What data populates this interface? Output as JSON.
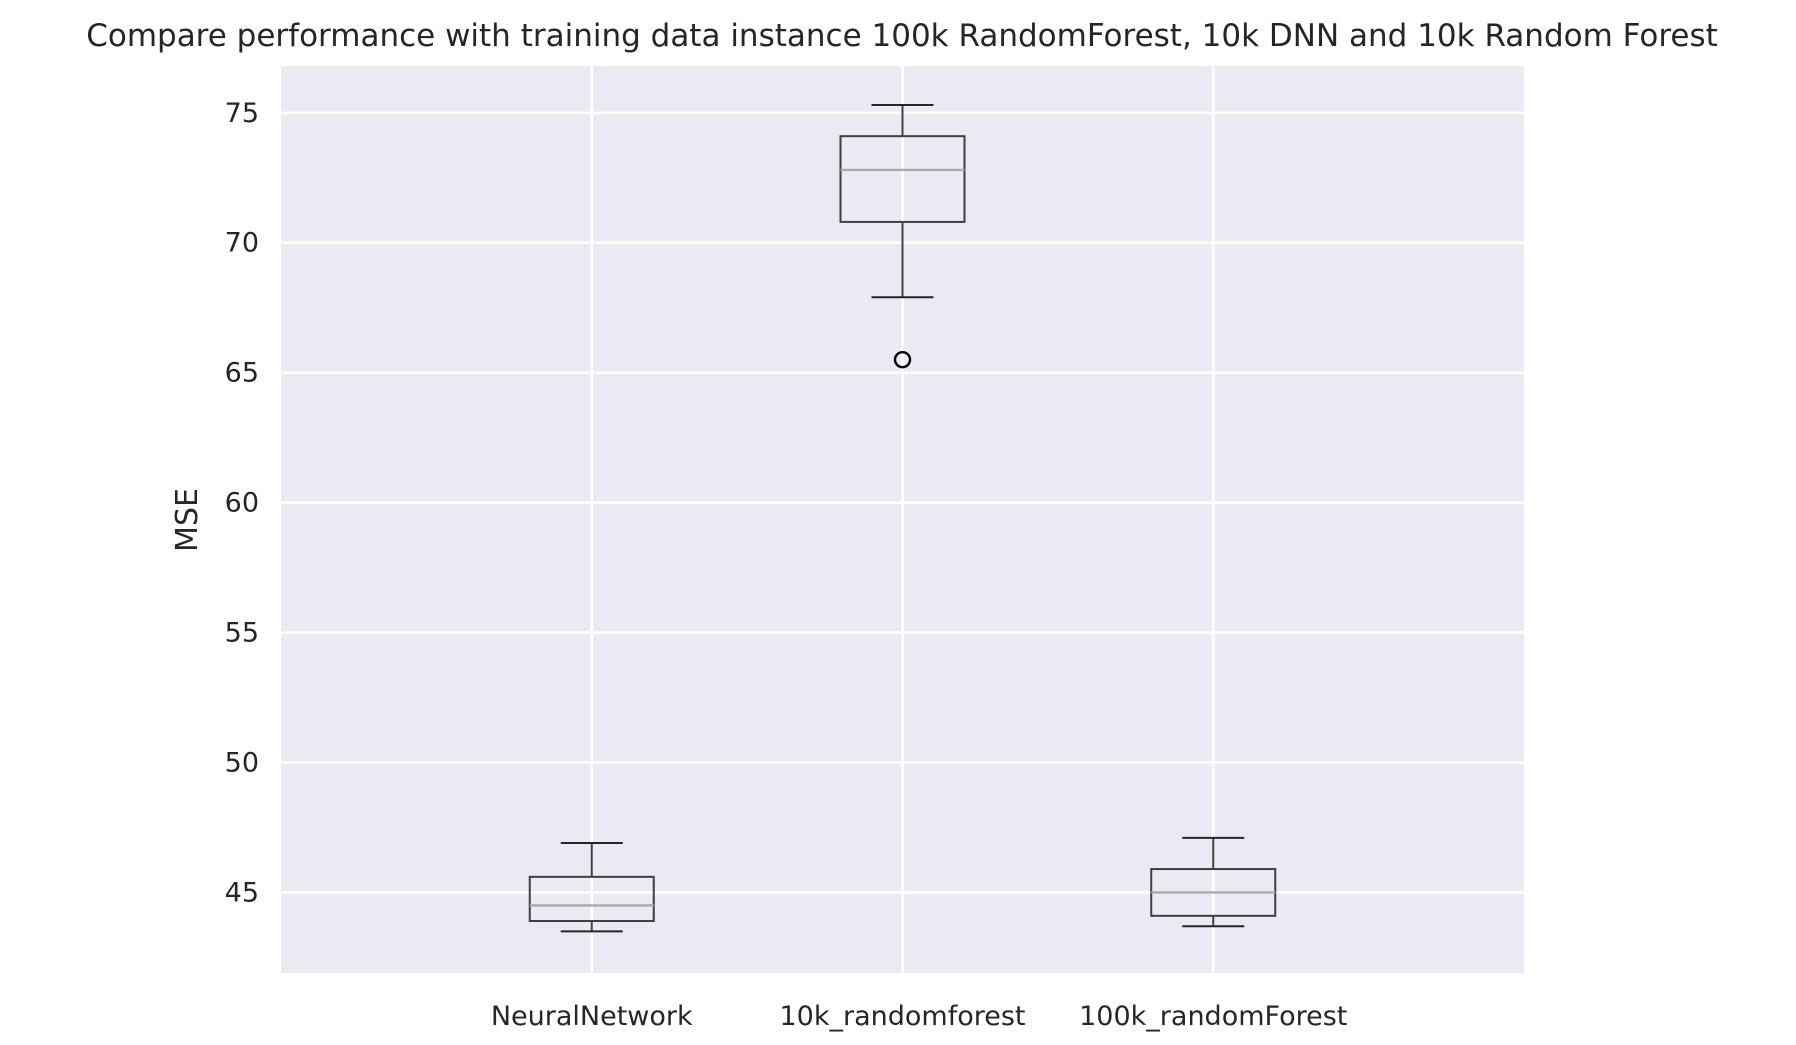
{
  "chart_data": {
    "type": "box",
    "title": "Compare performance with training data instance 100k RandomForest, 10k DNN and 10k Random Forest",
    "xlabel": "",
    "ylabel": "MSE",
    "ylim": [
      41.9,
      76.8
    ],
    "yticks": [
      45,
      50,
      55,
      60,
      65,
      70,
      75
    ],
    "grid": true,
    "legend": "none",
    "categories": [
      "NeuralNetwork",
      "10k_randomforest",
      "100k_randomForest"
    ],
    "series": [
      {
        "category": "NeuralNetwork",
        "whisker_low": 43.5,
        "q1": 43.9,
        "median": 44.5,
        "q3": 45.6,
        "whisker_high": 46.9,
        "outliers": []
      },
      {
        "category": "10k_randomforest",
        "whisker_low": 67.9,
        "q1": 70.8,
        "median": 72.8,
        "q3": 74.1,
        "whisker_high": 75.3,
        "outliers": [
          65.5
        ]
      },
      {
        "category": "100k_randomForest",
        "whisker_low": 43.7,
        "q1": 44.1,
        "median": 45.0,
        "q3": 45.9,
        "whisker_high": 47.1,
        "outliers": []
      }
    ],
    "colors": {
      "plot_background": "#eaeaf2",
      "grid": "#ffffff",
      "box": "#3f3f3f",
      "median": "#a9a9a9",
      "whisker": "#262626",
      "outlier": "#000000"
    }
  }
}
